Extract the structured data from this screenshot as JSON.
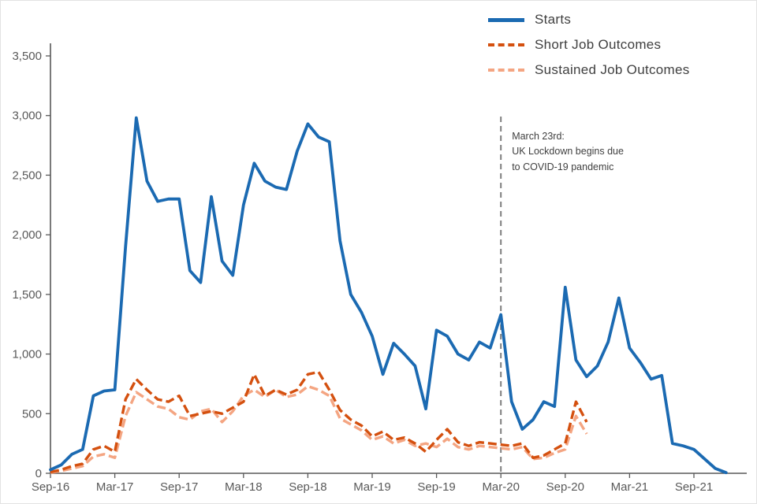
{
  "page": {
    "background": "#ffffff",
    "axis_color": "#595959",
    "tick_label_color": "#595959"
  },
  "chart_data": {
    "type": "line",
    "title": "",
    "xlabel": "",
    "ylabel": "",
    "ylim": [
      0,
      3500
    ],
    "y_tick_values": [
      0,
      500,
      1000,
      1500,
      2000,
      2500,
      3000,
      3500
    ],
    "y_tick_labels": [
      "0",
      "500",
      "1,000",
      "1,500",
      "2,000",
      "2,500",
      "3,000",
      "3,500"
    ],
    "x": [
      "Sep-16",
      "Oct-16",
      "Nov-16",
      "Dec-16",
      "Jan-17",
      "Feb-17",
      "Mar-17",
      "Apr-17",
      "May-17",
      "Jun-17",
      "Jul-17",
      "Aug-17",
      "Sep-17",
      "Oct-17",
      "Nov-17",
      "Dec-17",
      "Jan-18",
      "Feb-18",
      "Mar-18",
      "Apr-18",
      "May-18",
      "Jun-18",
      "Jul-18",
      "Aug-18",
      "Sep-18",
      "Oct-18",
      "Nov-18",
      "Dec-18",
      "Jan-19",
      "Feb-19",
      "Mar-19",
      "Apr-19",
      "May-19",
      "Jun-19",
      "Jul-19",
      "Aug-19",
      "Sep-19",
      "Oct-19",
      "Nov-19",
      "Dec-19",
      "Jan-20",
      "Feb-20",
      "Mar-20",
      "Apr-20",
      "May-20",
      "Jun-20",
      "Jul-20",
      "Aug-20",
      "Sep-20",
      "Oct-20",
      "Nov-20",
      "Dec-20",
      "Jan-21",
      "Feb-21",
      "Mar-21",
      "Apr-21",
      "May-21",
      "Jun-21",
      "Jul-21",
      "Aug-21",
      "Sep-21",
      "Oct-21",
      "Nov-21",
      "Dec-21"
    ],
    "x_tick_indices": [
      0,
      6,
      12,
      18,
      24,
      30,
      36,
      42,
      48,
      54,
      60
    ],
    "x_tick_labels": [
      "Sep-16",
      "Mar-17",
      "Sep-17",
      "Mar-18",
      "Sep-18",
      "Mar-19",
      "Sep-19",
      "Mar-20",
      "Sep-20",
      "Mar-21",
      "Sep-21"
    ],
    "grid": false,
    "legend_position": "top-right",
    "series": [
      {
        "name": "Starts",
        "color": "#1b6ab2",
        "dash": null,
        "values": [
          30,
          70,
          160,
          200,
          650,
          690,
          700,
          1900,
          2980,
          2450,
          2280,
          2300,
          2300,
          1700,
          1600,
          2320,
          1780,
          1660,
          2250,
          2600,
          2450,
          2400,
          2380,
          2700,
          2930,
          2820,
          2780,
          1950,
          1500,
          1350,
          1150,
          830,
          1090,
          1000,
          900,
          540,
          1200,
          1150,
          1000,
          950,
          1100,
          1050,
          1330,
          600,
          370,
          450,
          600,
          560,
          1560,
          950,
          810,
          900,
          1100,
          1470,
          1050,
          930,
          790,
          820,
          250,
          230,
          200,
          120,
          40,
          5
        ]
      },
      {
        "name": "Short Job Outcomes",
        "color": "#d4500f",
        "dash": [
          11,
          5
        ],
        "values": [
          10,
          30,
          60,
          80,
          200,
          230,
          180,
          620,
          790,
          700,
          620,
          600,
          650,
          480,
          500,
          520,
          500,
          550,
          600,
          830,
          650,
          700,
          660,
          700,
          830,
          850,
          700,
          530,
          450,
          400,
          310,
          350,
          280,
          300,
          250,
          180,
          280,
          370,
          260,
          230,
          260,
          250,
          240,
          230,
          250,
          130,
          150,
          200,
          250,
          600,
          430
        ]
      },
      {
        "name": "Sustained Job Outcomes",
        "color": "#f4a582",
        "dash": [
          11,
          5
        ],
        "values": [
          5,
          20,
          40,
          60,
          140,
          160,
          130,
          480,
          680,
          620,
          560,
          540,
          470,
          450,
          520,
          540,
          430,
          520,
          650,
          700,
          640,
          700,
          640,
          660,
          730,
          700,
          650,
          460,
          410,
          360,
          280,
          310,
          250,
          280,
          230,
          250,
          220,
          290,
          220,
          200,
          230,
          220,
          210,
          200,
          220,
          120,
          130,
          170,
          200,
          480,
          330
        ]
      }
    ],
    "annotation": {
      "x_index": 42,
      "line_color": "#7f7f7f",
      "lines": [
        "March 23rd:",
        "UK Lockdown begins due",
        "to COVID-19 pandemic"
      ]
    }
  }
}
